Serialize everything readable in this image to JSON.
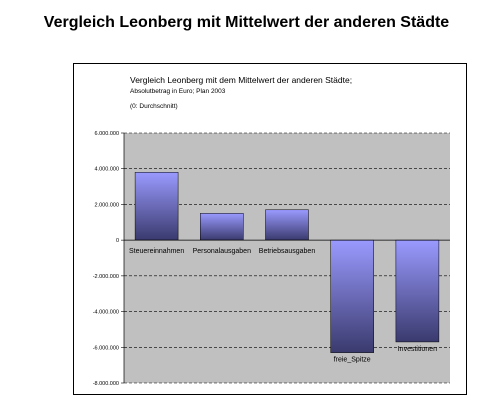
{
  "page": {
    "title": "Vergleich Leonberg mit Mittelwert der anderen Städte"
  },
  "chart_data": {
    "type": "bar",
    "title": "Vergleich Leonberg mit dem Mittelwert der anderen Städte;",
    "subtitle": "Absolutbetrag in Euro; Plan 2003",
    "note": "(0: Durchschnitt)",
    "categories": [
      "Steuereinnahmen",
      "Personalausgaben",
      "Betriebsausgaben",
      "freie_Spitze",
      "Investitionen"
    ],
    "values": [
      3800000,
      1500000,
      1700000,
      -6300000,
      -5700000
    ],
    "ylim": [
      -8000000,
      6000000
    ],
    "yticks": [
      6000000,
      4000000,
      2000000,
      0,
      -2000000,
      -4000000,
      -6000000,
      -8000000
    ],
    "ytick_labels": [
      "6.000.000",
      "4.000.000",
      "2.000.000",
      "0",
      "-2.000.000",
      "-4.000.000",
      "-6.000.000",
      "-8.000.000"
    ],
    "xlabel": "",
    "ylabel": "",
    "grid": true,
    "colors": {
      "plot_bg": "#c0c0c0",
      "bar_top": "#9a9aff",
      "bar_bottom": "#3a3a6e",
      "gridline": "#000000"
    }
  }
}
